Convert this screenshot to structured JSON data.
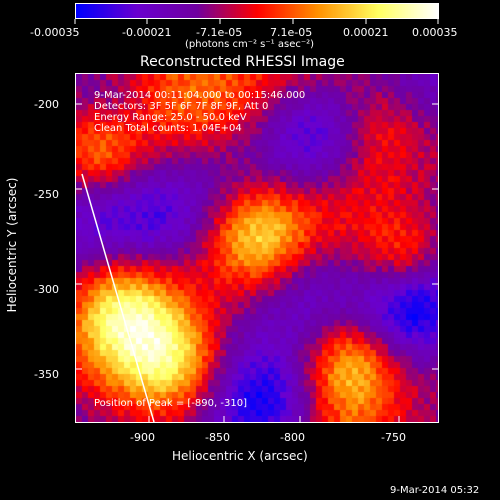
{
  "colorbar": {
    "tick_labels": [
      "-0.00035",
      "-0.00021",
      "-7.1e-05",
      "7.1e-05",
      "0.00021",
      "0.00035"
    ],
    "unit_label": "(photons cm⁻² s⁻¹ asec⁻²)",
    "colors": [
      "#0000ff",
      "#6a00d0",
      "#7000a0",
      "#ff0000",
      "#ff9000",
      "#ffff60",
      "#ffffff"
    ]
  },
  "plot": {
    "title": "Reconstructed RHESSI Image",
    "annotations": {
      "time_range": "9-Mar-2014 00:11:04.000 to 00:15:46.000",
      "detectors": "Detectors: 3F 5F 6F 7F 8F 9F, Att 0",
      "energy": "Energy Range: 25.0 - 50.0 keV",
      "clean": "Clean    Total counts: 1.04E+04",
      "peak": "Position of Peak = [-890, -310]"
    },
    "xlabel": "Heliocentric X (arcsec)",
    "ylabel": "Heliocentric Y (arcsec)",
    "x_tick_labels": [
      "-900",
      "-850",
      "-800",
      "-750"
    ],
    "y_tick_labels": [
      "-200",
      "-250",
      "-300",
      "-350"
    ]
  },
  "timestamp": "9-Mar-2014 05:32"
}
